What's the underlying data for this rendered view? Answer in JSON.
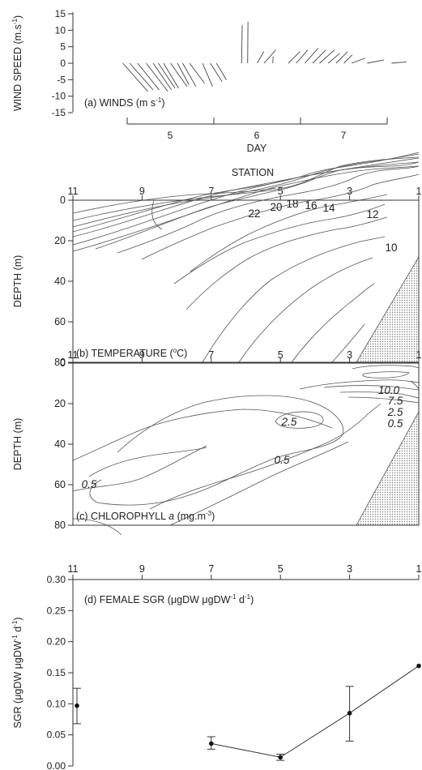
{
  "colors": {
    "ink": "#222222",
    "line": "#555555",
    "hatch": "#888888"
  },
  "panel_a": {
    "label": "(a) WINDS (m s",
    "label_sup": "-1",
    "label_end": ")",
    "ylabel": "WIND SPEED (m.s",
    "ylabel_sup": "-1",
    "ylabel_end": ")",
    "xlabel": "DAY",
    "day_ticks": [
      "5",
      "6",
      "7"
    ]
  },
  "panel_b": {
    "top_label": "STATION",
    "label": "(b) TEMPERATURE (",
    "label_sup": "o",
    "label_end": "C)",
    "ylabel": "DEPTH (m)"
  },
  "panel_c": {
    "label": "(c) CHLOROPHYLL ",
    "label_ital": "a",
    "label_unit": " (mg.m",
    "label_sup": "-3",
    "label_end": ")",
    "ylabel": "DEPTH (m)"
  },
  "panel_d": {
    "label": "(d) FEMALE SGR (μgDW μgDW",
    "label_sup1": "-1",
    "label_mid": " d",
    "label_sup2": "-1",
    "label_end": ")",
    "ylabel": "SGR (μgDW μgDW",
    "ylabel_sup1": "-1",
    "ylabel_mid": " d",
    "ylabel_sup2": "-1",
    "ylabel_end": ")"
  },
  "chart_data": [
    {
      "type": "line",
      "title": "(a) WINDS (m s-1)",
      "xlabel": "DAY",
      "ylabel": "WIND SPEED (m.s-1)",
      "x_ticks": [
        "5",
        "6",
        "7"
      ],
      "y_ticks": [
        "15",
        "10",
        "5",
        "0",
        "-5",
        "-10",
        "-15"
      ],
      "ylim": [
        -15,
        15
      ],
      "wind_sticks": [
        {
          "day": 4.45,
          "u": 7.5,
          "v": -8.5
        },
        {
          "day": 4.53,
          "u": 7.0,
          "v": -8.0
        },
        {
          "day": 4.62,
          "u": 6.5,
          "v": -8.0
        },
        {
          "day": 4.72,
          "u": 6.5,
          "v": -8.5
        },
        {
          "day": 4.8,
          "u": 5.5,
          "v": -8.0
        },
        {
          "day": 4.86,
          "u": 5.0,
          "v": -7.5
        },
        {
          "day": 4.92,
          "u": 4.5,
          "v": -7.5
        },
        {
          "day": 5.0,
          "u": 5.0,
          "v": -7.0
        },
        {
          "day": 5.08,
          "u": 3.5,
          "v": -6.5
        },
        {
          "day": 5.14,
          "u": 4.0,
          "v": -7.0
        },
        {
          "day": 5.22,
          "u": 4.5,
          "v": -6.0
        },
        {
          "day": 5.37,
          "u": 3.0,
          "v": -7.0
        },
        {
          "day": 5.46,
          "u": 3.5,
          "v": -5.5
        },
        {
          "day": 5.53,
          "u": 3.0,
          "v": -5.0
        },
        {
          "day": 5.82,
          "u": 0.2,
          "v": 11.5
        },
        {
          "day": 5.89,
          "u": 0.1,
          "v": 12.5
        },
        {
          "day": 6.0,
          "u": 2.0,
          "v": 3.5
        },
        {
          "day": 6.08,
          "u": 3.5,
          "v": 4.0
        },
        {
          "day": 6.18,
          "u": 0.1,
          "v": 2.0
        },
        {
          "day": 6.36,
          "u": 3.5,
          "v": 3.5
        },
        {
          "day": 6.45,
          "u": 3.5,
          "v": 4.0
        },
        {
          "day": 6.55,
          "u": 4.0,
          "v": 4.5
        },
        {
          "day": 6.64,
          "u": 4.0,
          "v": 4.0
        },
        {
          "day": 6.72,
          "u": 4.5,
          "v": 4.0
        },
        {
          "day": 6.82,
          "u": 3.5,
          "v": 3.0
        },
        {
          "day": 6.91,
          "u": 3.5,
          "v": 3.5
        },
        {
          "day": 7.0,
          "u": 2.5,
          "v": 2.5
        },
        {
          "day": 7.09,
          "u": 4.0,
          "v": 1.5
        },
        {
          "day": 7.27,
          "u": 5.0,
          "v": 1.0
        },
        {
          "day": 7.55,
          "u": 4.5,
          "v": 0.4
        }
      ]
    },
    {
      "type": "heatmap",
      "title": "(b) TEMPERATURE (oC)",
      "xlabel": "STATION",
      "ylabel": "DEPTH (m)",
      "x_ticks": [
        "11",
        "9",
        "7",
        "5",
        "3",
        "1"
      ],
      "y_ticks": [
        "0",
        "20",
        "40",
        "60",
        "80"
      ],
      "xlim": [
        11,
        1
      ],
      "ylim": [
        0,
        80
      ],
      "contour_labels": [
        "22",
        "20",
        "18",
        "16",
        "14",
        "12",
        "10"
      ]
    },
    {
      "type": "heatmap",
      "title": "(c) CHLOROPHYLL a (mg.m-3)",
      "xlabel": "STATION",
      "ylabel": "DEPTH (m)",
      "x_ticks": [
        "11",
        "9",
        "7",
        "5",
        "3",
        "1"
      ],
      "y_ticks": [
        "0",
        "20",
        "40",
        "60",
        "80"
      ],
      "xlim": [
        11,
        1
      ],
      "ylim": [
        0,
        80
      ],
      "contour_labels": [
        "10.0",
        "7.5",
        "2.5",
        "0.5",
        "2.5",
        "0.5",
        "0.5"
      ]
    },
    {
      "type": "scatter",
      "title": "(d) FEMALE SGR (μgDW μgDW-1 d-1)",
      "xlabel": "STATION",
      "ylabel": "SGR (μgDW μgDW-1 d-1)",
      "x_ticks": [
        "11",
        "9",
        "7",
        "5",
        "3",
        "1"
      ],
      "y_ticks": [
        "0.30",
        "0.25",
        "0.20",
        "0.15",
        "0.10",
        "0.05",
        "0.00"
      ],
      "ylim": [
        0,
        0.3
      ],
      "points": [
        {
          "station": 11,
          "sgr": 0.097,
          "err_low": 0.068,
          "err_high": 0.125
        },
        {
          "station": 7,
          "sgr": 0.036,
          "err_low": 0.027,
          "err_high": 0.047
        },
        {
          "station": 5,
          "sgr": 0.014,
          "err_low": 0.009,
          "err_high": 0.019
        },
        {
          "station": 3,
          "sgr": 0.085,
          "err_low": 0.04,
          "err_high": 0.128
        },
        {
          "station": 1,
          "sgr": 0.161
        }
      ],
      "line_segments": [
        [
          7,
          5,
          3,
          1
        ]
      ]
    }
  ]
}
